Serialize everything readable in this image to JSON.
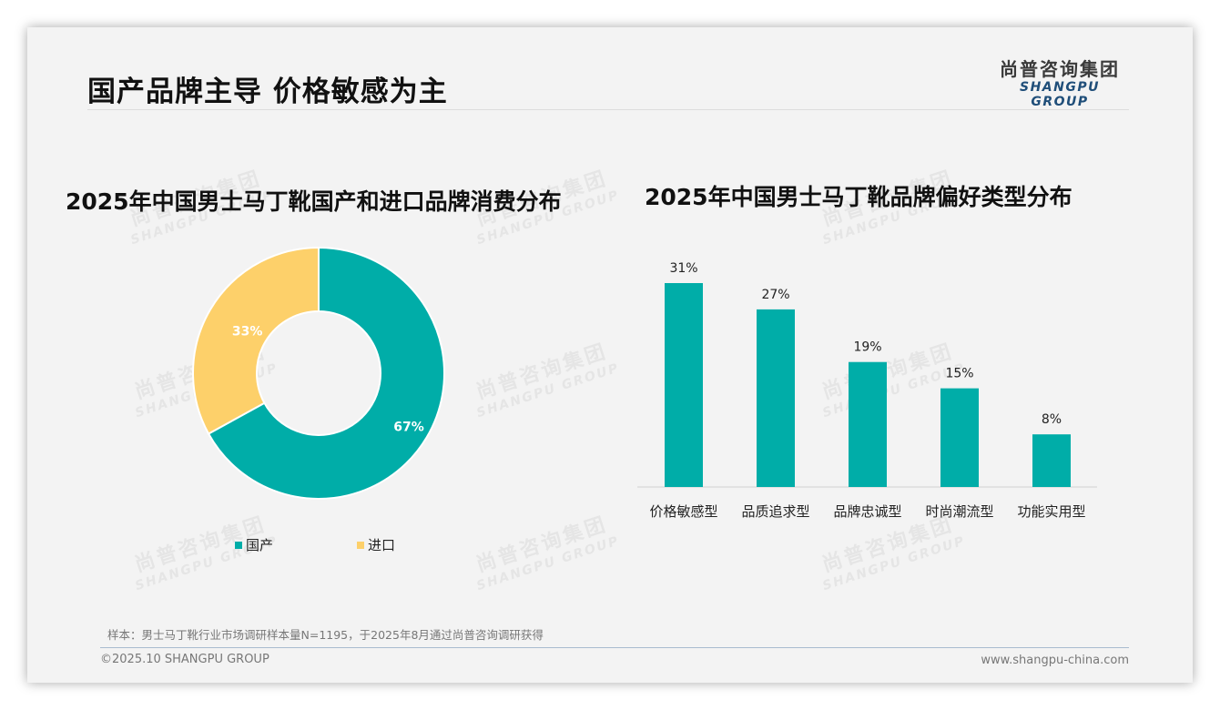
{
  "header": {
    "title": "国产品牌主导 价格敏感为主",
    "logo_cn": "尚普咨询集团",
    "logo_en": "SHANGPU GROUP"
  },
  "watermark": {
    "cn": "尚普咨询集团",
    "en": "SHANGPU GROUP"
  },
  "colors": {
    "domestic": "#00ADA8",
    "import": "#FDD06A",
    "bar": "#00ADA8",
    "background": "#F3F3F3"
  },
  "chart_data": [
    {
      "type": "pie",
      "title": "2025年中国男士马丁靴国产和进口品牌消费分布",
      "categories": [
        "国产",
        "进口"
      ],
      "values": [
        67,
        33
      ],
      "labels": [
        "67%",
        "33%"
      ],
      "donut": true,
      "legend_position": "bottom"
    },
    {
      "type": "bar",
      "title": "2025年中国男士马丁靴品牌偏好类型分布",
      "categories": [
        "价格敏感型",
        "品质追求型",
        "品牌忠诚型",
        "时尚潮流型",
        "功能实用型"
      ],
      "values": [
        31,
        27,
        19,
        15,
        8
      ],
      "labels": [
        "31%",
        "27%",
        "19%",
        "15%",
        "8%"
      ],
      "xlabel": "",
      "ylabel": "",
      "grid": false
    }
  ],
  "legend": {
    "domestic": "国产",
    "import": "进口"
  },
  "footer": {
    "note": "样本：男士马丁靴行业市场调研样本量N=1195，于2025年8月通过尚普咨询调研获得",
    "copyright": "©2025.10 SHANGPU GROUP",
    "website": "www.shangpu-china.com"
  }
}
